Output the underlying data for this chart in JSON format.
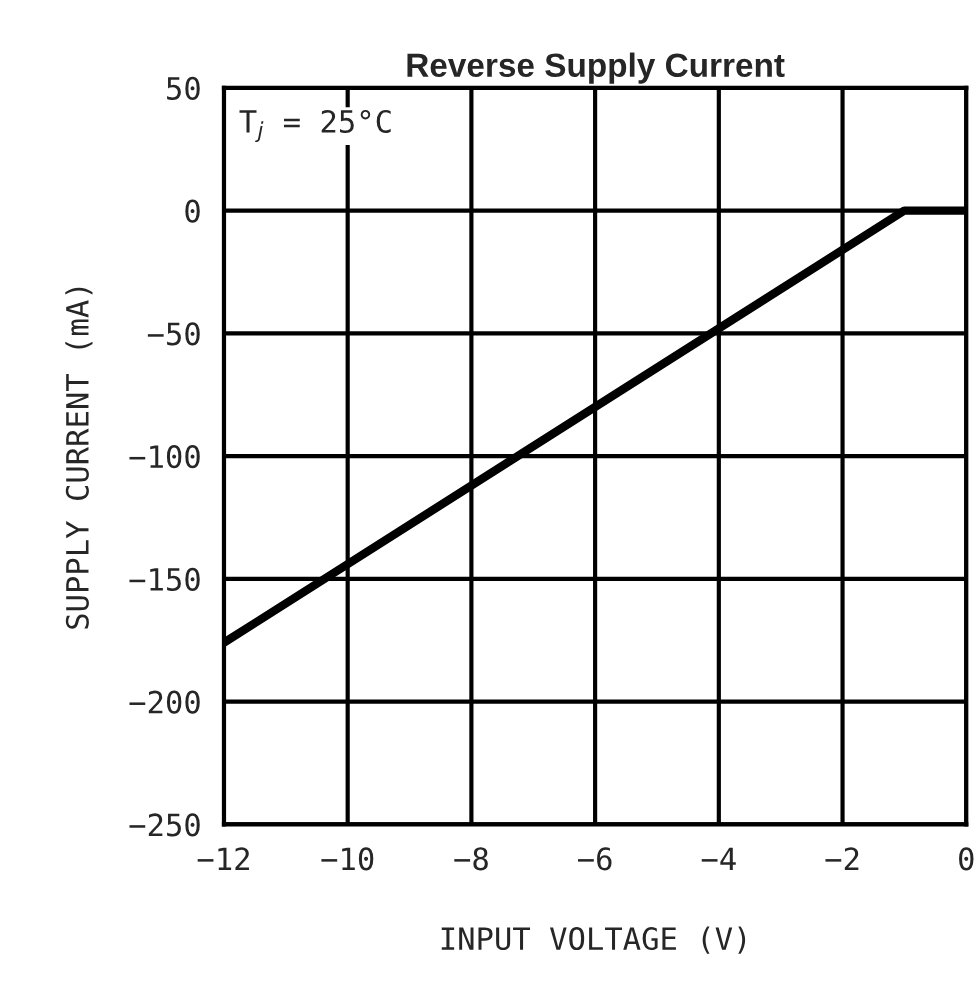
{
  "chart_data": {
    "type": "line",
    "title": "Reverse Supply Current",
    "xlabel": "INPUT VOLTAGE (V)",
    "ylabel": "SUPPLY CURRENT (mA)",
    "x": [
      -12,
      -1,
      0
    ],
    "series": [
      {
        "color": "#000000",
        "values": [
          -176,
          0,
          0
        ]
      }
    ],
    "xlim": [
      -12,
      0
    ],
    "xticks": [
      -12,
      -10,
      -8,
      -6,
      -4,
      -2,
      0
    ],
    "ylim": [
      -250,
      50
    ],
    "yticks": [
      -250,
      -200,
      -150,
      -100,
      -50,
      0,
      50
    ],
    "grid": true,
    "marker": "none",
    "line_style": "solid",
    "annotations": [
      "T$_{j}$ = 25°C"
    ]
  }
}
